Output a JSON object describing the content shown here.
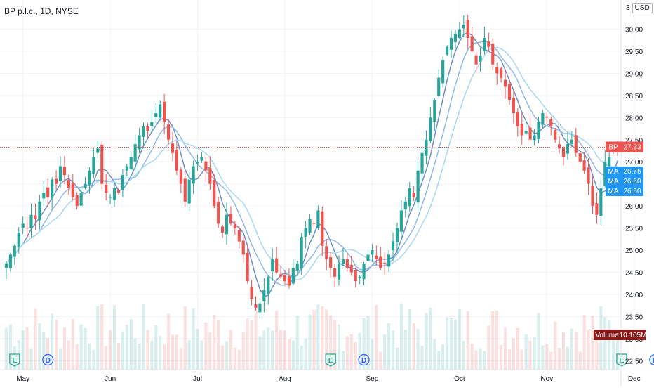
{
  "header": {
    "symbol_label": "BP p.l.c., 1D, NYSE",
    "currency_num": "3",
    "currency": "USD"
  },
  "colors": {
    "up": "#26a69a",
    "down": "#ef5350",
    "ma_fast": "#6d8fc8",
    "ma_mid": "#90b8e8",
    "ma_slow": "#a8d8f0",
    "ma_badge": "#2196f3",
    "price_badge": "#ef5350",
    "volume_badge": "#8b1a1a",
    "grid": "#f0f3fa",
    "price_line": "#ef5350"
  },
  "chart_data": {
    "type": "candlestick",
    "title": "BP p.l.c., 1D, NYSE",
    "ylim": [
      22.3,
      30.5
    ],
    "y_ticks": [
      "30.00",
      "29.50",
      "29.00",
      "28.50",
      "28.00",
      "27.50",
      "27.00",
      "26.50",
      "26.00",
      "25.50",
      "25.00",
      "24.50",
      "24.00",
      "23.50",
      "23.00",
      "22.50"
    ],
    "y_tick_values": [
      30.0,
      29.5,
      29.0,
      28.5,
      28.0,
      27.5,
      27.0,
      26.5,
      26.0,
      25.5,
      25.0,
      24.5,
      24.0,
      23.5,
      23.0,
      22.5
    ],
    "x_labels": [
      "May",
      "Jun",
      "Jul",
      "Aug",
      "Sep",
      "Oct",
      "Nov",
      "Dec"
    ],
    "x_label_index": [
      4,
      25,
      46,
      67,
      88,
      109,
      130,
      151
    ],
    "closes": [
      24.7,
      24.9,
      25.1,
      25.4,
      25.6,
      25.5,
      25.8,
      25.7,
      26.1,
      26.3,
      26.2,
      26.6,
      26.5,
      26.9,
      26.7,
      26.4,
      26.2,
      26.0,
      26.3,
      26.5,
      26.8,
      27.1,
      27.3,
      26.5,
      26.3,
      26.2,
      26.4,
      26.3,
      26.7,
      26.9,
      27.1,
      27.4,
      27.6,
      27.8,
      27.7,
      27.9,
      28.1,
      28.3,
      27.9,
      27.5,
      27.2,
      26.8,
      26.5,
      26.1,
      26.6,
      26.9,
      27.0,
      27.1,
      26.8,
      26.5,
      26.0,
      25.6,
      25.4,
      25.8,
      25.6,
      25.5,
      25.2,
      24.9,
      24.3,
      23.9,
      23.7,
      23.8,
      24.1,
      24.4,
      24.8,
      24.5,
      24.4,
      24.3,
      24.2,
      24.6,
      24.7,
      25.3,
      25.5,
      25.7,
      25.6,
      25.9,
      25.1,
      24.8,
      24.6,
      24.4,
      24.7,
      24.8,
      24.6,
      24.5,
      24.3,
      24.4,
      24.7,
      24.9,
      25.0,
      24.8,
      24.6,
      24.7,
      24.9,
      25.2,
      25.5,
      25.9,
      26.1,
      26.4,
      26.2,
      26.8,
      27.2,
      27.5,
      28.0,
      28.4,
      28.9,
      29.3,
      29.6,
      29.8,
      29.9,
      30.0,
      30.1,
      29.8,
      29.5,
      29.2,
      29.4,
      29.8,
      29.6,
      29.2,
      29.0,
      28.9,
      28.7,
      28.4,
      28.1,
      27.8,
      27.6,
      27.7,
      27.5,
      27.6,
      27.9,
      28.1,
      28.0,
      27.8,
      27.5,
      27.3,
      27.1,
      27.4,
      27.5,
      27.2,
      27.0,
      26.8,
      26.5,
      26.0,
      25.8,
      26.4,
      27.0,
      27.1,
      27.3,
      27.33
    ]
  },
  "indicators": {
    "ma_label": "MA",
    "ma_values": [
      "26.76",
      "26.60",
      "26.60"
    ],
    "price_badge_label": "BP",
    "price_badge_value": "27.33",
    "last_price": 27.33,
    "volume_label": "Volume",
    "volume_value": "10.105M"
  },
  "events": [
    {
      "type": "earnings",
      "symbol": "E",
      "index": 2
    },
    {
      "type": "dividend",
      "symbol": "D",
      "index": 10
    },
    {
      "type": "earnings",
      "symbol": "E",
      "index": 78
    },
    {
      "type": "dividend",
      "symbol": "D",
      "index": 86
    },
    {
      "type": "earnings",
      "symbol": "E",
      "index": 148
    },
    {
      "type": "dividend",
      "symbol": "D",
      "index": 156
    }
  ]
}
